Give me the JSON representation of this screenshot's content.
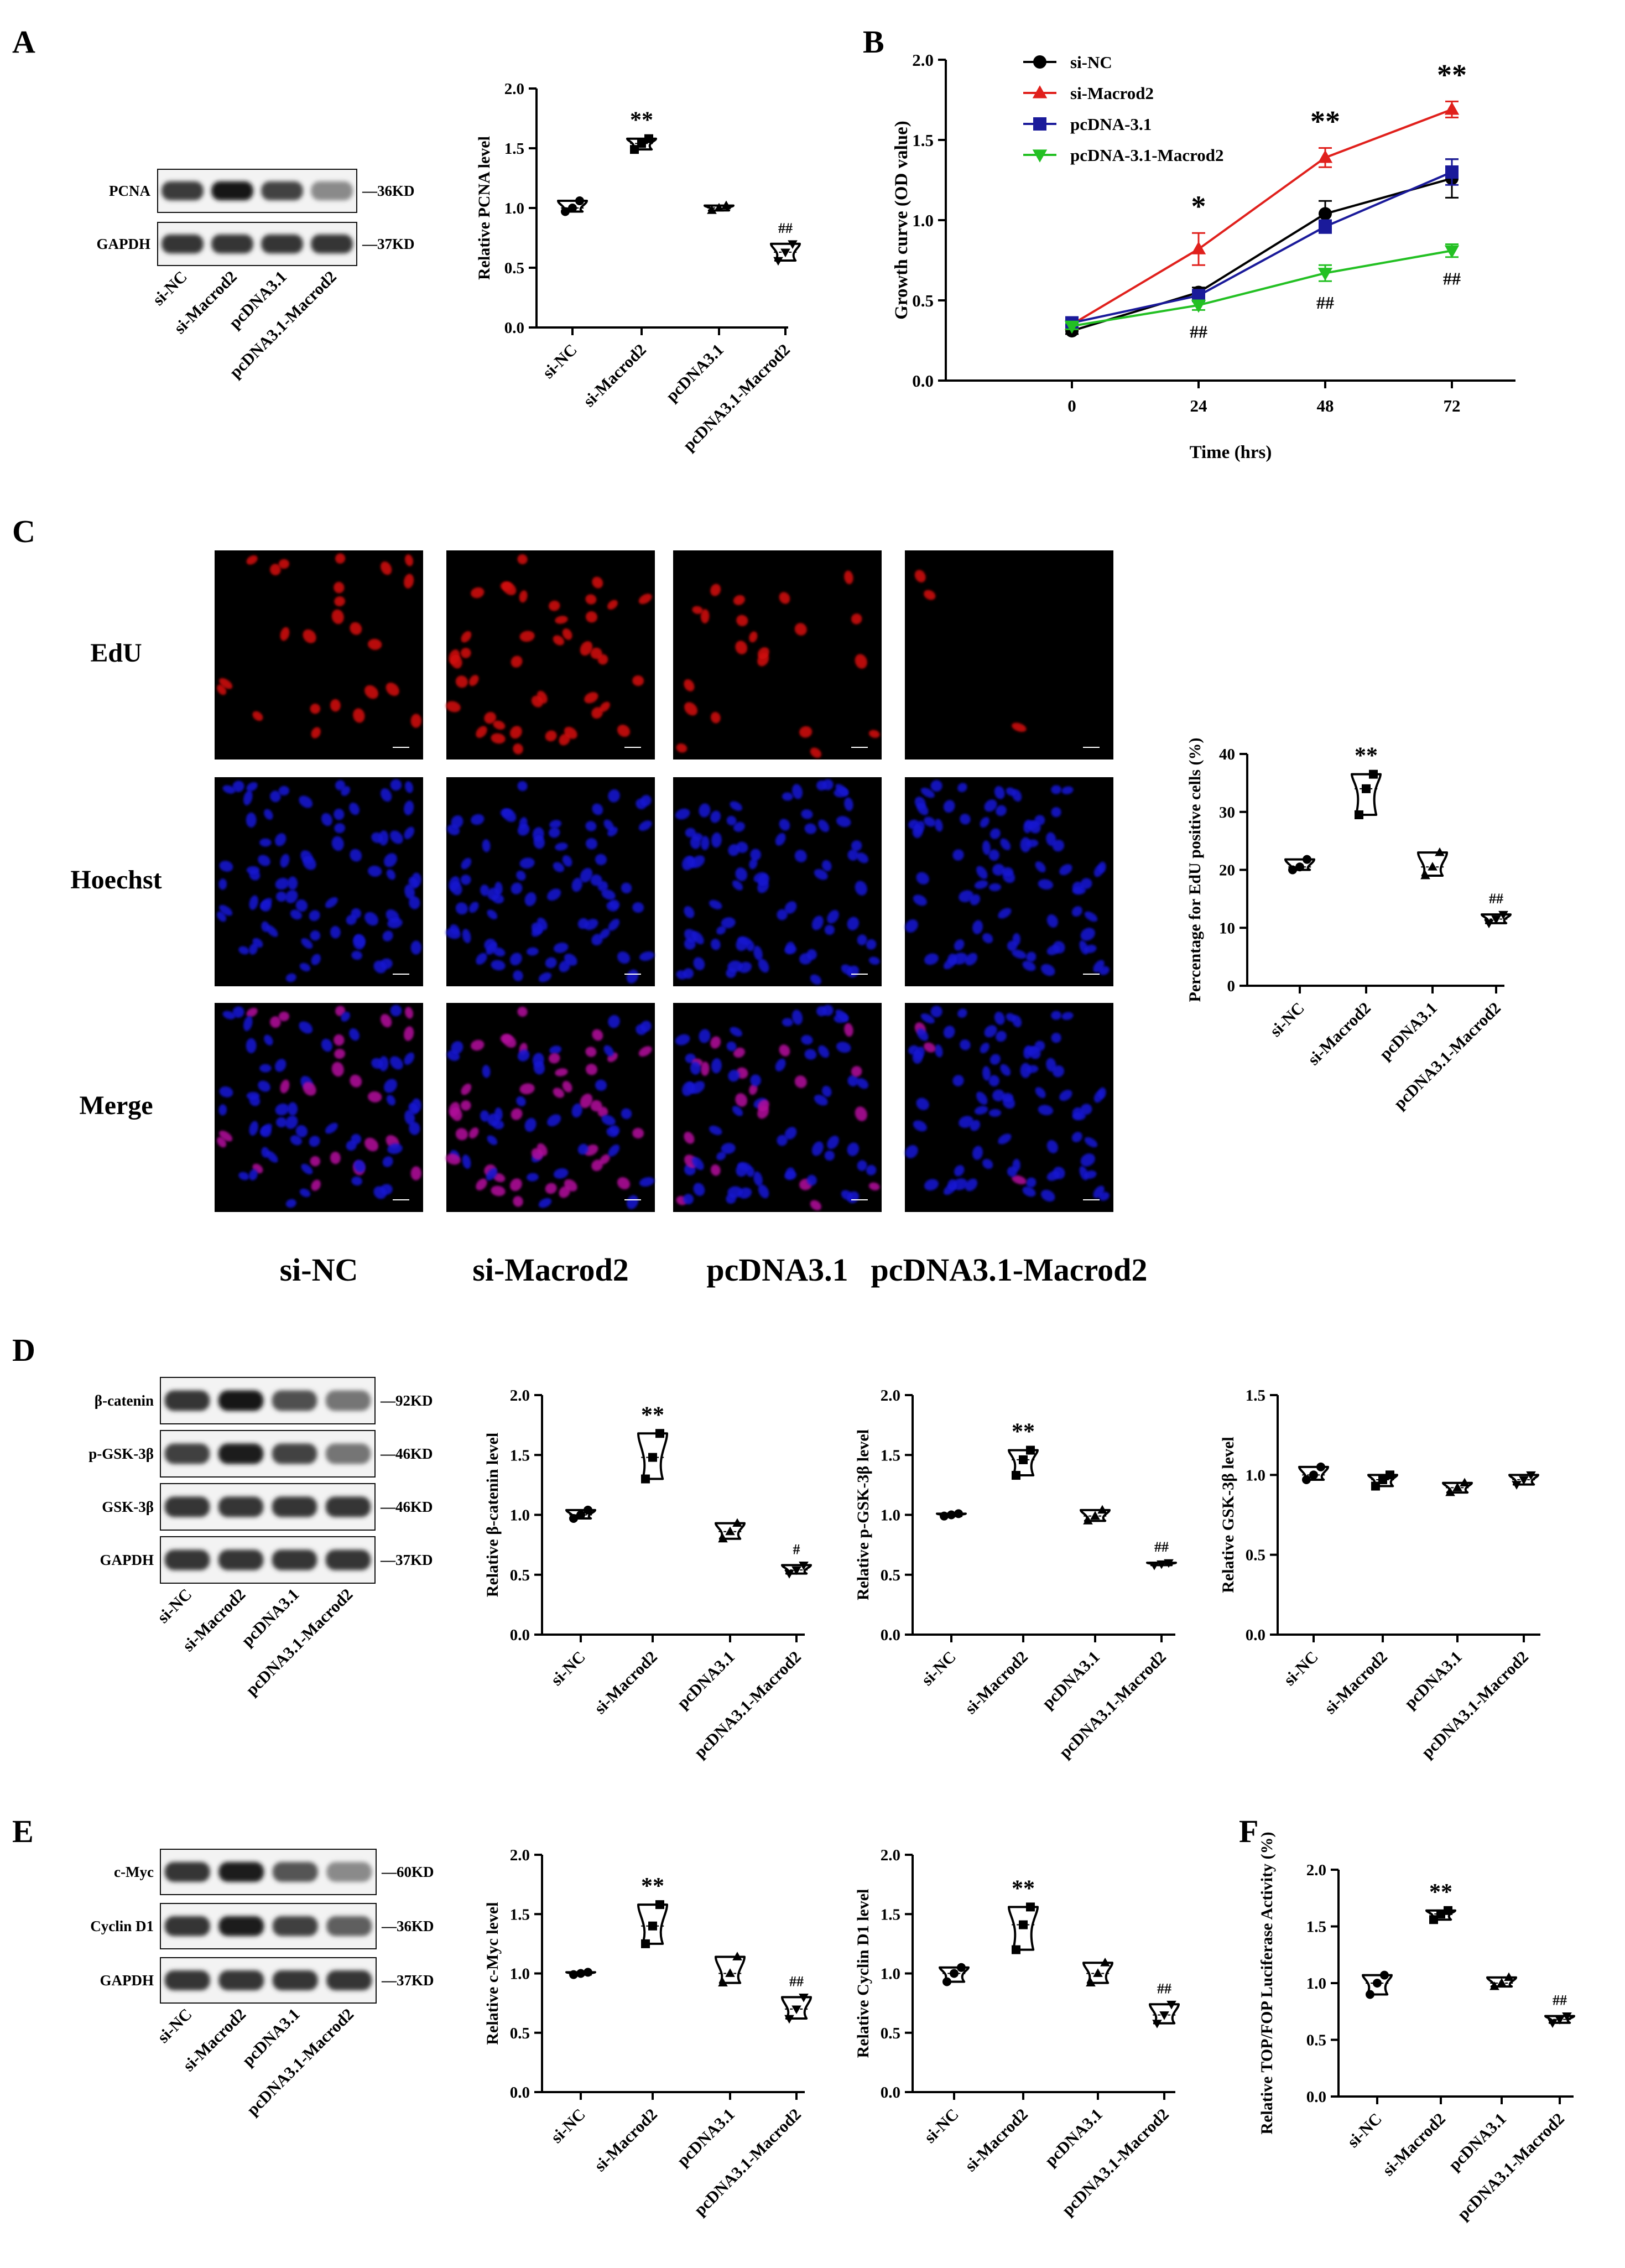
{
  "panels": {
    "A": "A",
    "B": "B",
    "C": "C",
    "D": "D",
    "E": "E",
    "F": "F"
  },
  "blot_lanes": [
    "si-NC",
    "si-Macrod2",
    "pcDNA3.1",
    "pcDNA3.1-Macrod2"
  ],
  "blot_A": [
    {
      "label": "PCNA",
      "size": "—36KD",
      "intensity": [
        0.82,
        0.98,
        0.78,
        0.45
      ]
    },
    {
      "label": "GAPDH",
      "size": "—37KD",
      "intensity": [
        0.85,
        0.85,
        0.85,
        0.85
      ]
    }
  ],
  "blot_D": [
    {
      "label": "β-catenin",
      "size": "—92KD",
      "intensity": [
        0.85,
        1.0,
        0.72,
        0.55
      ]
    },
    {
      "label": "p-GSK-3β",
      "size": "—46KD",
      "intensity": [
        0.8,
        0.95,
        0.78,
        0.55
      ]
    },
    {
      "label": "GSK-3β",
      "size": "—46KD",
      "intensity": [
        0.85,
        0.85,
        0.85,
        0.85
      ]
    },
    {
      "label": "GAPDH",
      "size": "—37KD",
      "intensity": [
        0.85,
        0.85,
        0.85,
        0.85
      ]
    }
  ],
  "blot_E": [
    {
      "label": "c-Myc",
      "size": "—60KD",
      "intensity": [
        0.85,
        0.95,
        0.7,
        0.45
      ]
    },
    {
      "label": "Cyclin D1",
      "size": "—36KD",
      "intensity": [
        0.85,
        0.95,
        0.8,
        0.65
      ]
    },
    {
      "label": "GAPDH",
      "size": "—37KD",
      "intensity": [
        0.85,
        0.85,
        0.85,
        0.85
      ]
    }
  ],
  "micrograph": {
    "rows": [
      "EdU",
      "Hoechst",
      "Merge"
    ],
    "columns": [
      "si-NC",
      "si-Macrod2",
      "pcDNA3.1",
      "pcDNA3.1-Macrod2"
    ],
    "edu_density": [
      0.35,
      0.55,
      0.3,
      0.08
    ],
    "colors": {
      "edu": "#d21010",
      "hoechst": "#1414d2",
      "merge": "#b0109a",
      "background": "#000000"
    }
  },
  "chart_data": [
    {
      "id": "A-pcna",
      "type": "violin-scatter",
      "categories": [
        "si-NC",
        "si-Macrod2",
        "pcDNA3.1",
        "pcDNA3.1-Macrod2"
      ],
      "points": [
        [
          0.97,
          1.0,
          1.06
        ],
        [
          1.49,
          1.54,
          1.58
        ],
        [
          0.98,
          1.0,
          1.02
        ],
        [
          0.56,
          0.63,
          0.7
        ]
      ],
      "ylabel": "Relative PCNA level",
      "ylim": [
        0,
        2.0
      ],
      "yticks": [
        "0.0",
        "0.5",
        "1.0",
        "1.5",
        "2.0"
      ],
      "annotations": [
        "",
        "**",
        "",
        "##"
      ]
    },
    {
      "id": "B-growth",
      "type": "line",
      "x": [
        0,
        24,
        48,
        72
      ],
      "xticks": [
        "0",
        "24",
        "48",
        "72"
      ],
      "xlabel": "Time (hrs)",
      "ylabel": "Growth curve (OD value)",
      "ylim": [
        0,
        2.0
      ],
      "yticks": [
        "0.0",
        "0.5",
        "1.0",
        "1.5",
        "2.0"
      ],
      "series": [
        {
          "name": "si-NC",
          "values": [
            0.31,
            0.55,
            1.04,
            1.26
          ],
          "errors": [
            0.02,
            0.03,
            0.08,
            0.12
          ],
          "color": "#000000",
          "marker": "circle"
        },
        {
          "name": "si-Macrod2",
          "values": [
            0.35,
            0.82,
            1.39,
            1.69
          ],
          "errors": [
            0.02,
            0.1,
            0.06,
            0.05
          ],
          "color": "#e0201c",
          "marker": "triangle"
        },
        {
          "name": "pcDNA-3.1",
          "values": [
            0.36,
            0.53,
            0.96,
            1.3
          ],
          "errors": [
            0.02,
            0.03,
            0.04,
            0.08
          ],
          "color": "#1a1a9a",
          "marker": "square"
        },
        {
          "name": "pcDNA-3.1-Macrod2",
          "values": [
            0.34,
            0.47,
            0.67,
            0.81
          ],
          "errors": [
            0.02,
            0.03,
            0.05,
            0.04
          ],
          "color": "#23c023",
          "marker": "triangle-down"
        }
      ],
      "annotations": [
        {
          "x": 24,
          "text": "*",
          "color": "#e0201c",
          "level": "high"
        },
        {
          "x": 48,
          "text": "**",
          "color": "#e0201c",
          "level": "high"
        },
        {
          "x": 72,
          "text": "**",
          "color": "#e0201c",
          "level": "high"
        },
        {
          "x": 24,
          "text": "##",
          "color": "#23c023",
          "level": "low"
        },
        {
          "x": 48,
          "text": "##",
          "color": "#23c023",
          "level": "low"
        },
        {
          "x": 72,
          "text": "##",
          "color": "#23c023",
          "level": "low"
        }
      ],
      "legend": "top-left"
    },
    {
      "id": "C-edu",
      "type": "violin-scatter",
      "categories": [
        "si-NC",
        "si-Macrod2",
        "pcDNA3.1",
        "pcDNA3.1-Macrod2"
      ],
      "points": [
        [
          20.0,
          20.5,
          21.8
        ],
        [
          29.5,
          34.0,
          36.5
        ],
        [
          19.0,
          20.5,
          23.0
        ],
        [
          10.8,
          11.5,
          12.3
        ]
      ],
      "ylabel": "Percentage for EdU positive cells (%)",
      "ylim": [
        0,
        40
      ],
      "yticks": [
        "0",
        "10",
        "20",
        "30",
        "40"
      ],
      "annotations": [
        "",
        "**",
        "",
        "##"
      ]
    },
    {
      "id": "D-bcatenin",
      "type": "violin-scatter",
      "categories": [
        "si-NC",
        "si-Macrod2",
        "pcDNA3.1",
        "pcDNA3.1-Macrod2"
      ],
      "points": [
        [
          0.97,
          1.0,
          1.04
        ],
        [
          1.3,
          1.48,
          1.68
        ],
        [
          0.8,
          0.86,
          0.93
        ],
        [
          0.51,
          0.54,
          0.58
        ]
      ],
      "ylabel": "Relative β-catenin level",
      "ylim": [
        0,
        2.0
      ],
      "yticks": [
        "0.0",
        "0.5",
        "1.0",
        "1.5",
        "2.0"
      ],
      "annotations": [
        "",
        "**",
        "",
        "#"
      ]
    },
    {
      "id": "D-pgsk",
      "type": "violin-scatter",
      "categories": [
        "si-NC",
        "si-Macrod2",
        "pcDNA3.1",
        "pcDNA3.1-Macrod2"
      ],
      "points": [
        [
          0.99,
          1.0,
          1.01
        ],
        [
          1.33,
          1.46,
          1.54
        ],
        [
          0.95,
          0.99,
          1.04
        ],
        [
          0.58,
          0.59,
          0.6
        ]
      ],
      "ylabel": "Relative p-GSK-3β level",
      "ylim": [
        0,
        2.0
      ],
      "yticks": [
        "0.0",
        "0.5",
        "1.0",
        "1.5",
        "2.0"
      ],
      "annotations": [
        "",
        "**",
        "",
        "##"
      ]
    },
    {
      "id": "D-gsk",
      "type": "violin-scatter",
      "categories": [
        "si-NC",
        "si-Macrod2",
        "pcDNA3.1",
        "pcDNA3.1-Macrod2"
      ],
      "points": [
        [
          0.97,
          1.0,
          1.05
        ],
        [
          0.93,
          0.97,
          1.0
        ],
        [
          0.89,
          0.92,
          0.95
        ],
        [
          0.94,
          0.97,
          1.0
        ]
      ],
      "ylabel": "Relative GSK-3β level",
      "ylim": [
        0,
        1.5
      ],
      "yticks": [
        "0.0",
        "0.5",
        "1.0",
        "1.5"
      ],
      "annotations": [
        "",
        "",
        "",
        ""
      ]
    },
    {
      "id": "E-cmyc",
      "type": "violin-scatter",
      "categories": [
        "si-NC",
        "si-Macrod2",
        "pcDNA3.1",
        "pcDNA3.1-Macrod2"
      ],
      "points": [
        [
          0.99,
          1.0,
          1.01
        ],
        [
          1.25,
          1.4,
          1.58
        ],
        [
          0.92,
          1.0,
          1.14
        ],
        [
          0.62,
          0.7,
          0.8
        ]
      ],
      "ylabel": "Relative c-Myc level",
      "ylim": [
        0,
        2.0
      ],
      "yticks": [
        "0.0",
        "0.5",
        "1.0",
        "1.5",
        "2.0"
      ],
      "annotations": [
        "",
        "**",
        "",
        "##"
      ]
    },
    {
      "id": "E-cyclin",
      "type": "violin-scatter",
      "categories": [
        "si-NC",
        "si-Macrod2",
        "pcDNA3.1",
        "pcDNA3.1-Macrod2"
      ],
      "points": [
        [
          0.93,
          1.0,
          1.05
        ],
        [
          1.2,
          1.41,
          1.56
        ],
        [
          0.92,
          1.0,
          1.09
        ],
        [
          0.58,
          0.65,
          0.74
        ]
      ],
      "ylabel": "Relative Cyclin D1 level",
      "ylim": [
        0,
        2.0
      ],
      "yticks": [
        "0.0",
        "0.5",
        "1.0",
        "1.5",
        "2.0"
      ],
      "annotations": [
        "",
        "**",
        "",
        "##"
      ]
    },
    {
      "id": "F-topfop",
      "type": "violin-scatter",
      "categories": [
        "si-NC",
        "si-Macrod2",
        "pcDNA3.1",
        "pcDNA3.1-Macrod2"
      ],
      "points": [
        [
          0.9,
          1.0,
          1.07
        ],
        [
          1.56,
          1.61,
          1.64
        ],
        [
          0.97,
          1.0,
          1.05
        ],
        [
          0.65,
          0.68,
          0.71
        ]
      ],
      "ylabel": "Relative TOP/FOP Luciferase Activity (%)",
      "ylim": [
        0,
        2.0
      ],
      "yticks": [
        "0.0",
        "0.5",
        "1.0",
        "1.5",
        "2.0"
      ],
      "annotations": [
        "",
        "**",
        "",
        "##"
      ]
    }
  ]
}
